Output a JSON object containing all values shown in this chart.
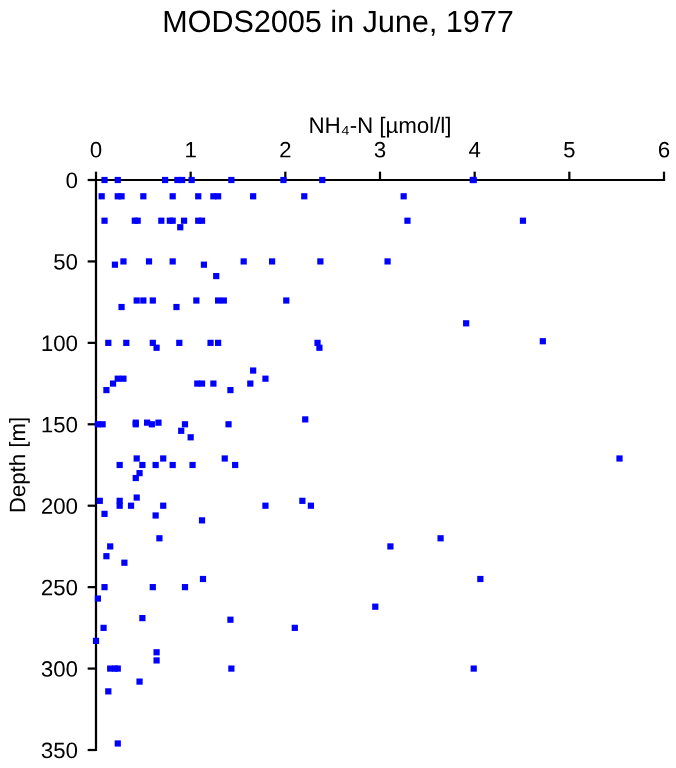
{
  "chart_data": {
    "type": "scatter",
    "title": "MODS2005 in June, 1977",
    "xlabel": "NH₄-N [µmol/l]",
    "ylabel": "Depth [m]",
    "x": [
      0.09,
      0.23,
      0.73,
      0.86,
      0.91,
      1.01,
      1.43,
      1.98,
      2.39,
      3.98,
      3.99,
      0.06,
      0.23,
      0.27,
      0.5,
      0.81,
      1.08,
      1.24,
      1.29,
      1.66,
      2.2,
      3.25,
      0.09,
      0.41,
      0.44,
      0.69,
      0.78,
      0.81,
      0.93,
      1.08,
      1.12,
      3.29,
      4.51,
      0.89,
      0.2,
      0.29,
      0.56,
      0.81,
      1.14,
      1.56,
      1.86,
      2.37,
      3.08,
      1.27,
      0.43,
      0.5,
      0.6,
      1.06,
      1.29,
      1.35,
      2.01,
      0.27,
      0.85,
      3.91,
      4.72,
      0.13,
      0.32,
      0.6,
      0.88,
      1.21,
      1.29,
      2.34,
      0.64,
      2.36,
      1.66,
      0.23,
      0.29,
      1.79,
      0.18,
      1.07,
      1.12,
      1.24,
      1.63,
      0.11,
      1.42,
      2.21,
      0.42,
      0.54,
      0.66,
      0.02,
      0.07,
      0.42,
      0.59,
      0.94,
      1.4,
      0.9,
      1.0,
      0.43,
      0.71,
      1.36,
      5.53,
      0.25,
      0.49,
      0.63,
      0.81,
      1.02,
      1.47,
      0.46,
      0.42,
      0.43,
      0.04,
      0.25,
      2.18,
      0.25,
      0.37,
      0.71,
      1.79,
      2.27,
      0.09,
      0.63,
      1.12,
      0.67,
      3.64,
      0.15,
      3.11,
      0.11,
      0.3,
      1.13,
      4.06,
      0.09,
      0.6,
      0.94,
      0.02,
      2.95,
      0.49,
      1.42,
      0.08,
      2.1,
      0.0,
      0.64,
      0.64,
      0.15,
      0.2,
      0.23,
      1.43,
      3.99,
      0.46,
      0.13,
      0.23
    ],
    "series": [
      {
        "color": "#0000ff",
        "values": [
          0,
          0,
          0,
          0,
          0,
          0,
          0,
          0,
          0,
          0,
          0,
          10,
          10,
          10,
          10,
          10,
          10,
          10,
          10,
          10,
          10,
          10,
          25,
          25,
          25,
          25,
          25,
          25,
          25,
          25,
          25,
          25,
          25,
          29,
          52,
          50,
          50,
          50,
          52,
          50,
          50,
          50,
          50,
          59,
          74,
          74,
          74,
          74,
          74,
          74,
          74,
          78,
          78,
          88,
          99,
          100,
          100,
          100,
          100,
          100,
          100,
          100,
          103,
          103,
          117,
          122,
          122,
          122,
          125,
          125,
          125,
          125,
          125,
          129,
          129,
          147,
          149,
          149,
          149,
          150,
          150,
          150,
          150,
          150,
          150,
          154,
          158,
          171,
          171,
          171,
          171,
          175,
          175,
          175,
          175,
          175,
          175,
          180,
          183,
          195,
          197,
          197,
          197,
          200,
          200,
          200,
          200,
          200,
          205,
          206,
          209,
          220,
          220,
          225,
          225,
          231,
          235,
          245,
          245,
          250,
          250,
          250,
          257,
          262,
          269,
          270,
          275,
          275,
          283,
          290,
          295,
          300,
          300,
          300,
          300,
          300,
          308,
          314,
          346
        ]
      }
    ],
    "xlim": [
      0,
      6
    ],
    "xticks": [
      0,
      1,
      2,
      3,
      4,
      5,
      6
    ],
    "ylim": [
      350,
      0
    ],
    "yticks": [
      0,
      50,
      100,
      150,
      200,
      250,
      300,
      350
    ],
    "marker": "square",
    "grid": false,
    "legend": false
  }
}
